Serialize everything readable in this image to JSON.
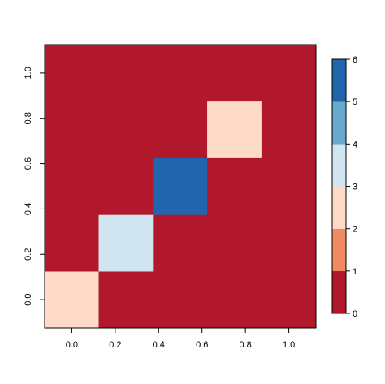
{
  "chart_data": {
    "type": "heatmap",
    "x_ticks": [
      "0.0",
      "0.2",
      "0.4",
      "0.6",
      "0.8",
      "1.0"
    ],
    "y_ticks": [
      "0.0",
      "0.2",
      "0.4",
      "0.6",
      "0.8",
      "1.0"
    ],
    "xlim": [
      -0.125,
      1.125
    ],
    "ylim": [
      -0.125,
      1.125
    ],
    "grid": {
      "x_centers": [
        0.0,
        0.25,
        0.5,
        0.75,
        1.0
      ],
      "y_centers": [
        0.0,
        0.25,
        0.5,
        0.75,
        1.0
      ],
      "cell_size": 0.25
    },
    "z": [
      [
        2,
        0,
        0,
        0,
        0
      ],
      [
        0,
        3,
        0,
        0,
        0
      ],
      [
        0,
        0,
        6,
        0,
        0
      ],
      [
        0,
        0,
        0,
        2,
        0
      ],
      [
        0,
        0,
        0,
        0,
        0
      ]
    ],
    "z_row_order": "row index = y index (bottom to top), column index = x index (left to right)",
    "color_breaks": [
      0,
      1,
      2,
      3,
      4,
      5,
      6
    ],
    "colors": [
      "#b2182b",
      "#ef8a62",
      "#fddbc7",
      "#d1e5f0",
      "#67a9cf",
      "#2166ac"
    ],
    "colorbar_ticks": [
      "0",
      "1",
      "2",
      "3",
      "4",
      "5",
      "6"
    ],
    "colorbar_placement": "right",
    "axis_grid": false,
    "title": "",
    "xlabel": "",
    "ylabel": ""
  }
}
